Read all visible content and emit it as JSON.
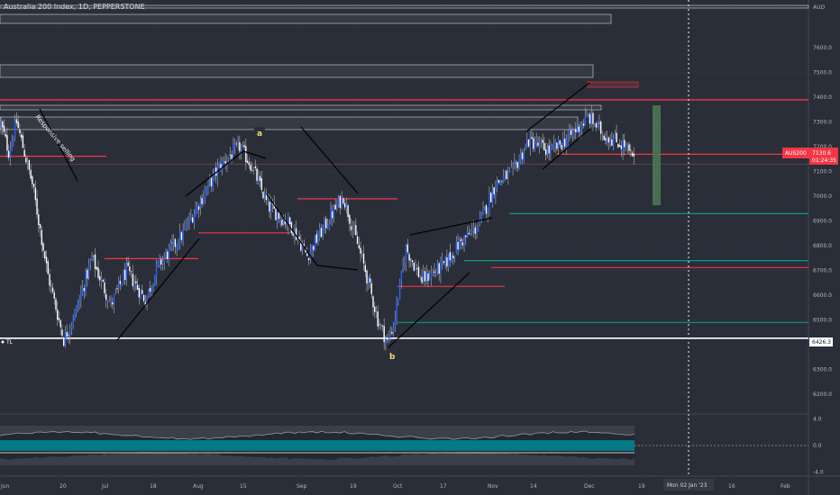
{
  "header": {
    "title": "Australia 200 Index, 1D, PEPPERSTONE",
    "currency": "AUD"
  },
  "price_tag": {
    "symbol": "AUS200",
    "price": "7130.6",
    "countdown": "01:24:35"
  },
  "level_tags": {
    "tl_label": "TL",
    "tl_value": "6426.3"
  },
  "annotations": {
    "responsive_selling": "Responsive selling",
    "wave_a": "a",
    "wave_b": "b"
  },
  "crosshair_label": "Mon 02 Jan '23",
  "colors": {
    "background": "#2a2e39",
    "bull_candle": "#2962ff",
    "bear_candle": "#ffffff",
    "resistance": "#f23645",
    "support": "#089981",
    "target_box": "#4c7a55",
    "tl_line": "#ffffff",
    "oscillator_fill": "#00838f"
  },
  "chart_data": [
    {
      "type": "candlestick",
      "title": "Australia 200 Index, 1D, PEPPERSTONE",
      "ylabel": "AUD",
      "ylim": [
        6120,
        7750
      ],
      "y_ticks": [
        6200,
        6300,
        6400,
        6500,
        6600,
        6700,
        6800,
        6900,
        7000,
        7100,
        7200,
        7300,
        7400,
        7500,
        7600
      ],
      "x_tick_labels": [
        "Jun",
        "20",
        "Jul",
        "18",
        "Aug",
        "15",
        "Sep",
        "19",
        "Oct",
        "17",
        "Nov",
        "14",
        "Dec",
        "19",
        "Jan",
        "16",
        "Feb"
      ],
      "key_levels": {
        "resistance": [
          7390,
          7200,
          7165,
          6990,
          6850,
          6750,
          6710,
          6635
        ],
        "support": [
          7255,
          7165,
          6930,
          6740,
          6490
        ],
        "trend_line": 6426.3
      },
      "pivot_labels": [
        {
          "label": "a",
          "price": 7205
        },
        {
          "label": "b",
          "price": 6370
        }
      ],
      "last_price": 7130.6,
      "path": [
        [
          0,
          7290
        ],
        [
          5,
          7180
        ],
        [
          10,
          7300
        ],
        [
          20,
          7050
        ],
        [
          30,
          6680
        ],
        [
          40,
          6420
        ],
        [
          48,
          6540
        ],
        [
          58,
          6750
        ],
        [
          70,
          6560
        ],
        [
          80,
          6700
        ],
        [
          92,
          6580
        ],
        [
          100,
          6720
        ],
        [
          115,
          6840
        ],
        [
          125,
          6960
        ],
        [
          140,
          7130
        ],
        [
          152,
          7200
        ],
        [
          160,
          7120
        ],
        [
          170,
          6960
        ],
        [
          185,
          6880
        ],
        [
          195,
          6760
        ],
        [
          208,
          6900
        ],
        [
          218,
          7000
        ],
        [
          232,
          6700
        ],
        [
          240,
          6500
        ],
        [
          246,
          6410
        ],
        [
          250,
          6480
        ],
        [
          258,
          6790
        ],
        [
          268,
          6660
        ],
        [
          282,
          6720
        ],
        [
          292,
          6810
        ],
        [
          304,
          6880
        ],
        [
          315,
          7050
        ],
        [
          326,
          7100
        ],
        [
          336,
          7225
        ],
        [
          350,
          7180
        ],
        [
          362,
          7240
        ],
        [
          374,
          7320
        ],
        [
          384,
          7250
        ],
        [
          398,
          7200
        ],
        [
          404,
          7130
        ]
      ]
    },
    {
      "type": "line",
      "ylim": [
        -4.5,
        4.5
      ],
      "y_ticks": [
        4.0,
        0.0,
        -4.0
      ],
      "note": "oscillator band below main chart"
    }
  ]
}
